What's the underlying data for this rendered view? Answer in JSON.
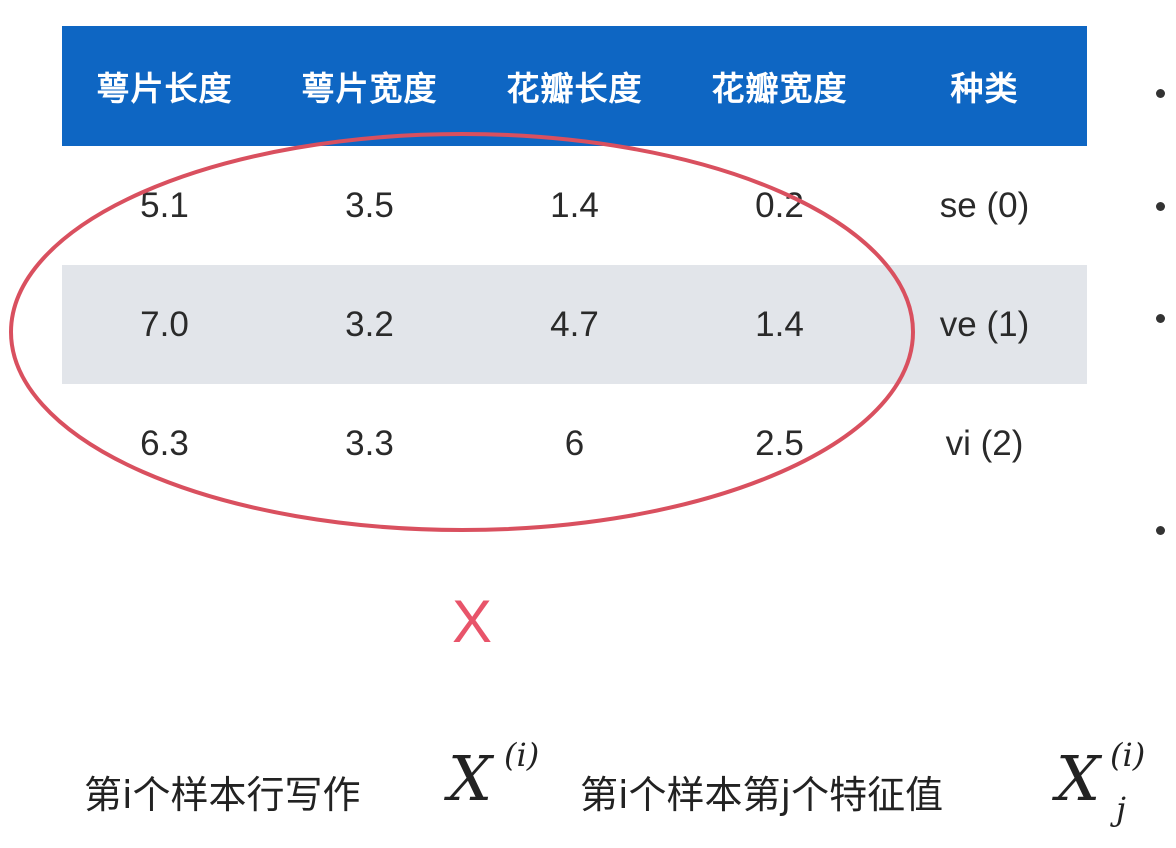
{
  "table": {
    "headers": [
      "萼片长度",
      "萼片宽度",
      "花瓣长度",
      "花瓣宽度",
      "种类"
    ],
    "rows": [
      [
        "5.1",
        "3.5",
        "1.4",
        "0.2",
        "se (0)"
      ],
      [
        "7.0",
        "3.2",
        "4.7",
        "1.4",
        "ve (1)"
      ],
      [
        "6.3",
        "3.3",
        "6",
        "2.5",
        "vi (2)"
      ]
    ]
  },
  "matrix_label": "X",
  "caption": {
    "row_text": "第i个样本行写作",
    "row_symbol": "X",
    "row_superscript": "(i)",
    "feature_text": "第i个样本第j个特征值",
    "feature_symbol": "X",
    "feature_superscript": "(i)",
    "feature_subscript": "j"
  },
  "colors": {
    "header_bg": "#0e66c3",
    "shaded_row": "#e2e5ea",
    "highlight": "#e8546a"
  }
}
